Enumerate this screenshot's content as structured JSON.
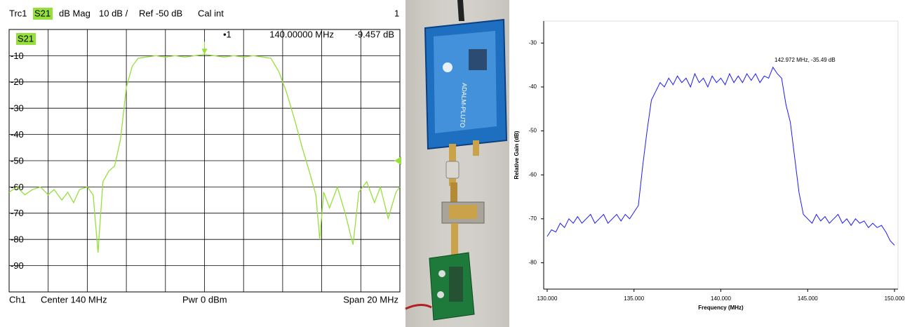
{
  "chart_data": [
    {
      "type": "line",
      "header": [
        "Trc1",
        "S21",
        "dB Mag",
        "10 dB /",
        "Ref -50 dB",
        "Cal int",
        "1"
      ],
      "footer": [
        "Ch1",
        "Center 140 MHz",
        "Pwr 0 dBm",
        "Span 20 MHz"
      ],
      "marker": {
        "label": "•1",
        "x": 140,
        "value": -9.457,
        "frequency_label": "140.00000  MHz",
        "value_label": "-9.457  dB"
      },
      "reference_level": -50,
      "xlim": [
        130,
        150
      ],
      "ylim": [
        -100,
        0
      ],
      "yticks": [
        -10,
        -20,
        -30,
        -40,
        -50,
        -60,
        -70,
        -80,
        -90
      ],
      "grid": true,
      "x": [
        130,
        130.4,
        130.8,
        131.2,
        131.6,
        132.0,
        132.3,
        132.7,
        133.0,
        133.3,
        133.6,
        134.0,
        134.3,
        134.55,
        134.8,
        135.1,
        135.4,
        135.7,
        136.0,
        136.3,
        136.6,
        137.0,
        137.5,
        138.0,
        138.5,
        139.0,
        139.5,
        140.0,
        140.5,
        141.0,
        141.5,
        142.0,
        142.5,
        143.0,
        143.4,
        143.8,
        144.2,
        144.6,
        145.0,
        145.4,
        145.7,
        145.9,
        146.1,
        146.4,
        146.8,
        147.2,
        147.6,
        147.9,
        148.3,
        148.7,
        149.0,
        149.4,
        149.8,
        150
      ],
      "series": [
        {
          "name": "S21",
          "color": "#96e03c",
          "values": [
            -62,
            -60,
            -63,
            -61,
            -60,
            -63,
            -61,
            -65,
            -62,
            -66,
            -61,
            -60,
            -63,
            -85,
            -58,
            -54,
            -52,
            -42,
            -22,
            -14,
            -11,
            -10.5,
            -10,
            -10.5,
            -10,
            -10.5,
            -10,
            -9.457,
            -10,
            -10.5,
            -10,
            -10.5,
            -10,
            -10.5,
            -11,
            -16,
            -24,
            -34,
            -45,
            -55,
            -63,
            -80,
            -62,
            -68,
            -60,
            -70,
            -82,
            -62,
            -58,
            -66,
            -60,
            -72,
            -62,
            -60
          ]
        }
      ]
    },
    {
      "type": "line",
      "xlabel": "Frequency (MHz)",
      "ylabel": "Relative Gain (dB)",
      "annotation": "142.972 MHz, -35.49 dB",
      "xlim": [
        129.8,
        150.2
      ],
      "ylim": [
        -86,
        -25
      ],
      "xticks": [
        {
          "value": 130,
          "label": "130.000"
        },
        {
          "value": 135,
          "label": "135.000"
        },
        {
          "value": 140,
          "label": "140.000"
        },
        {
          "value": 145,
          "label": "145.000"
        },
        {
          "value": 150,
          "label": "150.000"
        }
      ],
      "yticks": [
        -30,
        -40,
        -50,
        -60,
        -70,
        -80
      ],
      "x": [
        130,
        130.25,
        130.5,
        130.75,
        131,
        131.25,
        131.5,
        131.75,
        132,
        132.25,
        132.5,
        132.75,
        133,
        133.25,
        133.5,
        133.75,
        134,
        134.25,
        134.5,
        134.75,
        135,
        135.25,
        135.5,
        135.75,
        136,
        136.25,
        136.5,
        136.75,
        137,
        137.25,
        137.5,
        137.75,
        138,
        138.25,
        138.5,
        138.75,
        139,
        139.25,
        139.5,
        139.75,
        140,
        140.25,
        140.5,
        140.75,
        141,
        141.25,
        141.5,
        141.75,
        142,
        142.25,
        142.5,
        142.75,
        143,
        143.25,
        143.5,
        143.75,
        144,
        144.25,
        144.5,
        144.75,
        145,
        145.25,
        145.5,
        145.75,
        146,
        146.25,
        146.5,
        146.75,
        147,
        147.25,
        147.5,
        147.75,
        148,
        148.25,
        148.5,
        148.75,
        149,
        149.25,
        149.5,
        149.75,
        150
      ],
      "series": [
        {
          "color": "#1a1aff",
          "values": [
            -74,
            -72.5,
            -73,
            -71,
            -72,
            -70,
            -71,
            -69.5,
            -71,
            -70,
            -69,
            -71,
            -70,
            -69,
            -71,
            -70,
            -69,
            -70.5,
            -69,
            -70,
            -68.5,
            -67,
            -58,
            -50,
            -43,
            -41,
            -39,
            -40,
            -38,
            -39.5,
            -37.5,
            -39,
            -38,
            -40,
            -37,
            -39,
            -38,
            -40,
            -37.5,
            -39,
            -38,
            -39.5,
            -37,
            -39,
            -37.5,
            -39,
            -37,
            -38.5,
            -37,
            -39,
            -37.5,
            -38,
            -35.5,
            -37,
            -38,
            -44,
            -48,
            -56,
            -64,
            -69,
            -70,
            -71,
            -69,
            -70.5,
            -69.5,
            -71,
            -70,
            -69,
            -71,
            -70,
            -71.5,
            -70,
            -71,
            -70.5,
            -72,
            -71,
            -72,
            -71.5,
            -73,
            -75,
            -76
          ]
        }
      ]
    }
  ],
  "photo": {
    "device_label": "ADALM-PLUTO"
  }
}
